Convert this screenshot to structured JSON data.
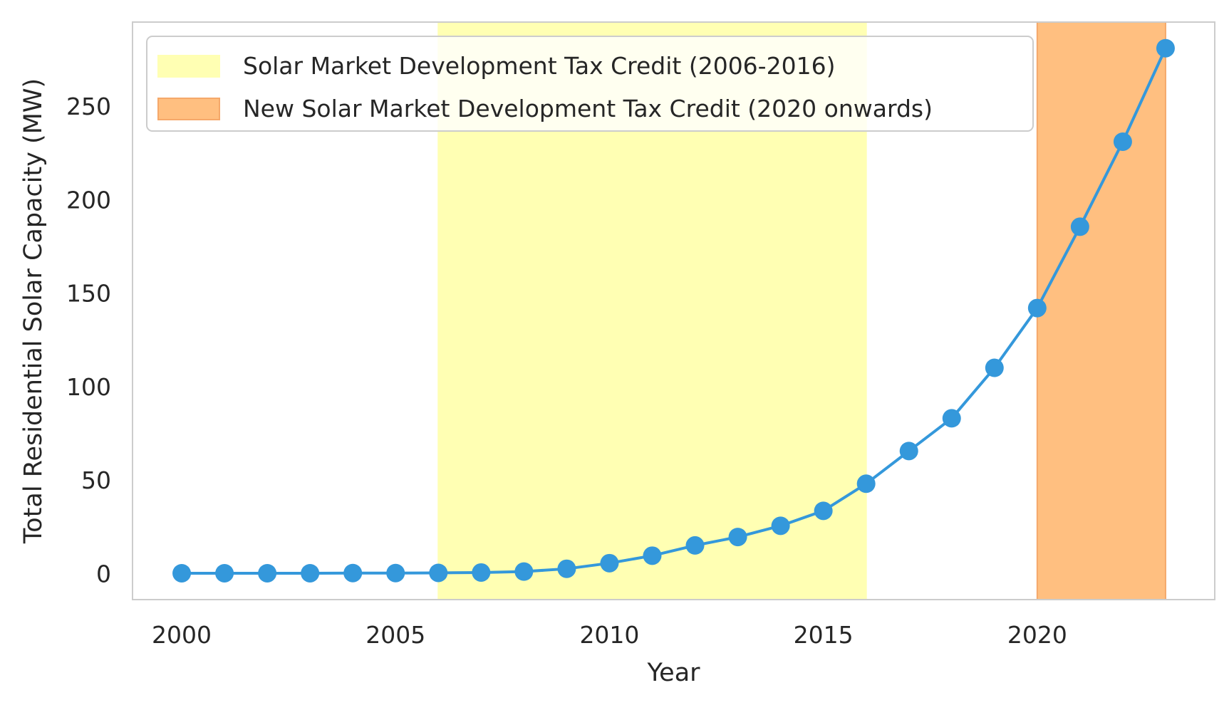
{
  "chart_data": {
    "type": "line",
    "title": "",
    "xlabel": "Year",
    "ylabel": "Total Residential Solar Capacity (MW)",
    "xlim": [
      1998.85,
      2024.15
    ],
    "ylim": [
      -14,
      295
    ],
    "x_ticks": [
      2000,
      2005,
      2010,
      2015,
      2020
    ],
    "y_ticks": [
      0,
      50,
      100,
      150,
      200,
      250
    ],
    "grid": false,
    "legend_position": "top-left",
    "series": [
      {
        "x": [
          2000,
          2001,
          2002,
          2003,
          2004,
          2005,
          2006,
          2007,
          2008,
          2009,
          2010,
          2011,
          2012,
          2013,
          2014,
          2015,
          2016,
          2017,
          2018,
          2019,
          2020,
          2021,
          2022,
          2023
        ],
        "values": [
          0.1,
          0.1,
          0.1,
          0.1,
          0.2,
          0.2,
          0.3,
          0.5,
          1.0,
          2.5,
          5.5,
          9.5,
          15.0,
          19.5,
          25.5,
          33.5,
          48.0,
          65.5,
          83.0,
          110.0,
          142.0,
          185.5,
          231.0,
          281.0
        ],
        "color": "#3498db"
      }
    ],
    "shaded_spans": [
      {
        "label": "Solar Market Development Tax Credit (2006-2016)",
        "start": 2006,
        "end": 2016,
        "color": "#ffffb3",
        "edge": "#ffffb3"
      },
      {
        "label": "New Solar Market Development Tax Credit (2020 onwards)",
        "start": 2020,
        "end": 2023,
        "color": "#ffbf80",
        "edge": "#f5a86a"
      }
    ]
  }
}
